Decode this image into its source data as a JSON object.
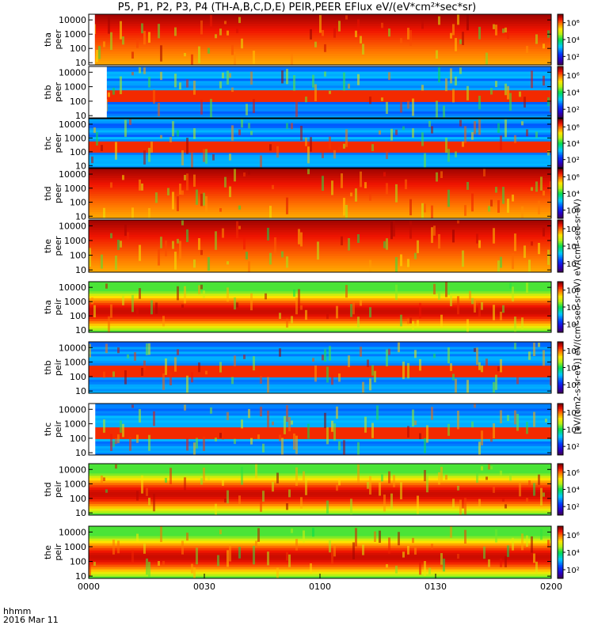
{
  "title": "P5, P1, P2, P3, P4 (TH-A,B,C,D,E) PEIR,PEER EFlux eV/(eV*cm²*sec*sr)",
  "colorbar_title": "[eV/(cm2-s-sr-eV)] eV/(cm²-sec-sr-eV) eV/(cm²-sec-sr-eV)",
  "footer": {
    "time_format": "hhmm",
    "date": "2016 Mar 11"
  },
  "colors": {
    "frame": "#000000",
    "background": "#ffffff"
  },
  "chart_data": {
    "type": "heatmap",
    "quantity": "EFlux eV/(eV*cm²*sec*sr)",
    "x_axis": {
      "ticks": [
        "0000",
        "0030",
        "0100",
        "0130",
        "0200"
      ],
      "range_minutes": [
        0,
        120
      ],
      "tick_minutes": [
        0,
        30,
        60,
        90,
        120
      ],
      "date": "2016 Mar 11"
    },
    "y_axis": {
      "scale": "log",
      "range_eV": [
        7,
        25000
      ],
      "ticks": [
        "10",
        "100",
        "1000",
        "10000"
      ]
    },
    "colorbar": {
      "scale": "log",
      "ticks": [
        "10²",
        "10⁴",
        "10⁶"
      ],
      "range": [
        10,
        10000000
      ],
      "colormap": "rainbow (purple-blue-cyan-green-yellow-red)"
    },
    "panels": [
      {
        "probe": "tha",
        "instrument": "peer",
        "label1": "tha",
        "label2": "peer",
        "gap_end_min": 1.6,
        "noisy_lowflux_bands": false
      },
      {
        "probe": "thb",
        "instrument": "peer",
        "label1": "thb",
        "label2": "peer",
        "gap_end_min": 4.7,
        "noisy_lowflux_bands": true
      },
      {
        "probe": "thc",
        "instrument": "peer",
        "label1": "thc",
        "label2": "peer",
        "gap_end_min": 0,
        "noisy_lowflux_bands": true
      },
      {
        "probe": "thd",
        "instrument": "peer",
        "label1": "thd",
        "label2": "peer",
        "gap_end_min": 0,
        "noisy_lowflux_bands": false
      },
      {
        "probe": "the",
        "instrument": "peer",
        "label1": "the",
        "label2": "peer",
        "gap_end_min": 0,
        "noisy_lowflux_bands": false
      },
      {
        "probe": "tha",
        "instrument": "peir",
        "label1": "tha",
        "label2": "peir",
        "gap_end_min": 0,
        "noisy_lowflux_bands": false
      },
      {
        "probe": "thb",
        "instrument": "peir",
        "label1": "thb",
        "label2": "peir",
        "gap_end_min": 0,
        "noisy_lowflux_bands": true
      },
      {
        "probe": "thc",
        "instrument": "peir",
        "label1": "thc",
        "label2": "peir",
        "gap_end_min": 1.7,
        "noisy_lowflux_bands": true
      },
      {
        "probe": "thd",
        "instrument": "peir",
        "label1": "thd",
        "label2": "peir",
        "gap_end_min": 0,
        "noisy_lowflux_bands": false
      },
      {
        "probe": "the",
        "instrument": "peir",
        "label1": "the",
        "label2": "peir",
        "gap_end_min": 0,
        "noisy_lowflux_bands": false
      }
    ]
  }
}
